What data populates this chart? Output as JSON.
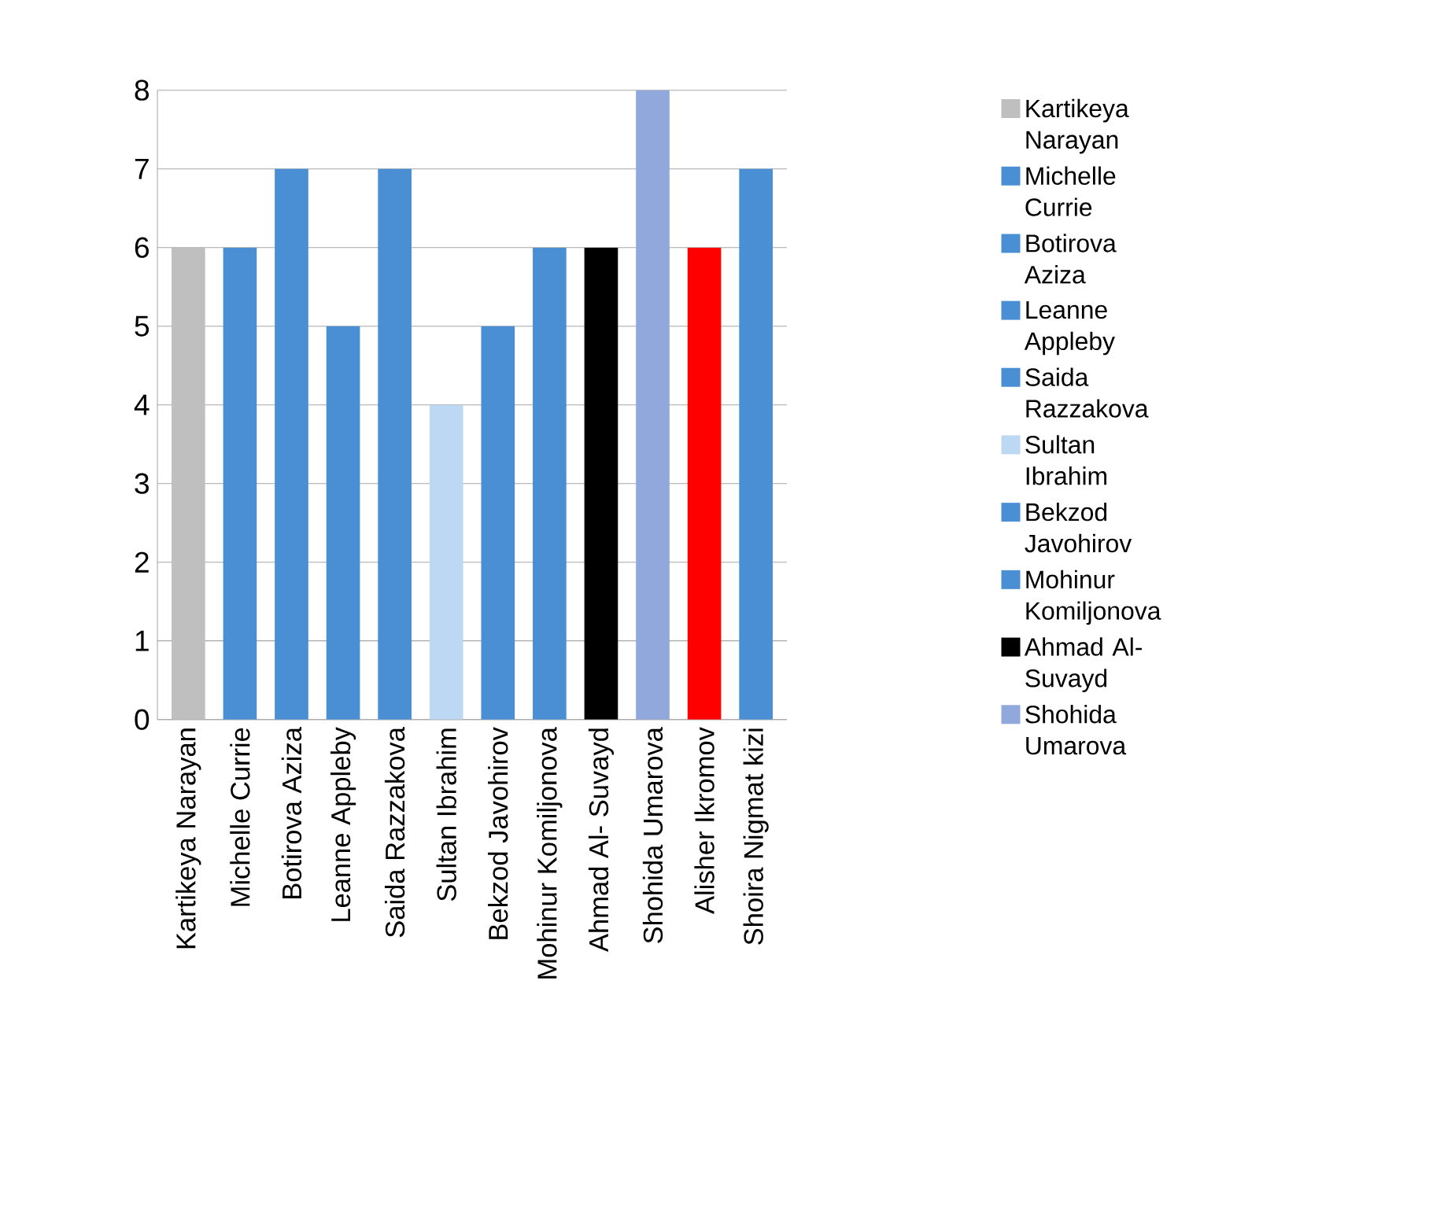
{
  "chart_data": {
    "type": "bar",
    "categories": [
      "Kartikeya Narayan",
      "Michelle Currie",
      "Botirova Aziza",
      "Leanne Appleby",
      "Saida Razzakova",
      "Sultan Ibrahim",
      "Bekzod Javohirov",
      "Mohinur Komiljonova",
      "Ahmad Al- Suvayd",
      "Shohida Umarova",
      "Alisher Ikromov",
      "Shoira Nigmat kizi"
    ],
    "series": [
      {
        "name": "Kartikeya Narayan",
        "color": "#bfbfbf",
        "values": [
          6,
          null,
          null,
          null,
          null,
          null,
          null,
          null,
          null,
          null,
          null,
          null
        ]
      },
      {
        "name": "Michelle Currie",
        "color": "#4a8fd4",
        "values": [
          null,
          6,
          null,
          null,
          null,
          null,
          null,
          null,
          null,
          null,
          null,
          null
        ]
      },
      {
        "name": "Botirova Aziza",
        "color": "#4a8fd4",
        "values": [
          null,
          null,
          7,
          null,
          null,
          null,
          null,
          null,
          null,
          null,
          null,
          null
        ]
      },
      {
        "name": "Leanne Appleby",
        "color": "#4a8fd4",
        "values": [
          null,
          null,
          null,
          5,
          null,
          null,
          null,
          null,
          null,
          null,
          null,
          null
        ]
      },
      {
        "name": "Saida Razzakova",
        "color": "#4a8fd4",
        "values": [
          null,
          null,
          null,
          null,
          7,
          null,
          null,
          null,
          null,
          null,
          null,
          null
        ]
      },
      {
        "name": "Sultan Ibrahim",
        "color": "#bcd8f2",
        "values": [
          null,
          null,
          null,
          null,
          null,
          4,
          null,
          null,
          null,
          null,
          null,
          null
        ]
      },
      {
        "name": "Bekzod Javohirov",
        "color": "#4a8fd4",
        "values": [
          null,
          null,
          null,
          null,
          null,
          null,
          5,
          null,
          null,
          null,
          null,
          null
        ]
      },
      {
        "name": "Mohinur Komiljonova",
        "color": "#4a8fd4",
        "values": [
          null,
          null,
          null,
          null,
          null,
          null,
          null,
          6,
          null,
          null,
          null,
          null
        ]
      },
      {
        "name": "Ahmad Al- Suvayd",
        "color": "#000000",
        "values": [
          null,
          null,
          null,
          null,
          null,
          null,
          null,
          null,
          6,
          null,
          null,
          null
        ]
      },
      {
        "name": "Shohida Umarova",
        "color": "#90a8dc",
        "values": [
          null,
          null,
          null,
          null,
          null,
          null,
          null,
          null,
          null,
          8,
          null,
          null
        ]
      },
      {
        "color": "#ff0000",
        "values": [
          null,
          null,
          null,
          null,
          null,
          null,
          null,
          null,
          null,
          null,
          6,
          null
        ]
      },
      {
        "color": "#4a8fd4",
        "values": [
          null,
          null,
          null,
          null,
          null,
          null,
          null,
          null,
          null,
          null,
          null,
          7
        ]
      }
    ],
    "ylim": [
      0,
      8
    ],
    "yticks": [
      0,
      1,
      2,
      3,
      4,
      5,
      6,
      7,
      8
    ],
    "grid": "y",
    "legend": "right"
  }
}
